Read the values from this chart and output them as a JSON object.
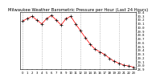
{
  "title": "Milwaukee Weather Barometric Pressure per Hour (Last 24 Hours)",
  "hours": [
    0,
    1,
    2,
    3,
    4,
    5,
    6,
    7,
    8,
    9,
    10,
    11,
    12,
    13,
    14,
    15,
    16,
    17,
    18,
    19,
    20,
    21,
    22,
    23
  ],
  "pressure": [
    30.15,
    30.22,
    30.28,
    30.18,
    30.08,
    30.22,
    30.3,
    30.18,
    30.05,
    30.22,
    30.28,
    30.08,
    29.9,
    29.72,
    29.55,
    29.42,
    29.35,
    29.28,
    29.18,
    29.1,
    29.05,
    29.0,
    28.98,
    28.95
  ],
  "line_color": "#ff0000",
  "marker_color": "#000000",
  "bg_color": "#ffffff",
  "grid_color": "#999999",
  "title_fontsize": 3.8,
  "tick_fontsize": 2.8,
  "ytick_fontsize": 2.8,
  "ylim": [
    28.9,
    30.4
  ],
  "xlim": [
    -0.5,
    23.5
  ],
  "yticks": [
    28.9,
    29.0,
    29.1,
    29.2,
    29.3,
    29.4,
    29.5,
    29.6,
    29.7,
    29.8,
    29.9,
    30.0,
    30.1,
    30.2,
    30.3,
    30.4
  ],
  "grid_hours": [
    0,
    4,
    8,
    12,
    16,
    20
  ]
}
